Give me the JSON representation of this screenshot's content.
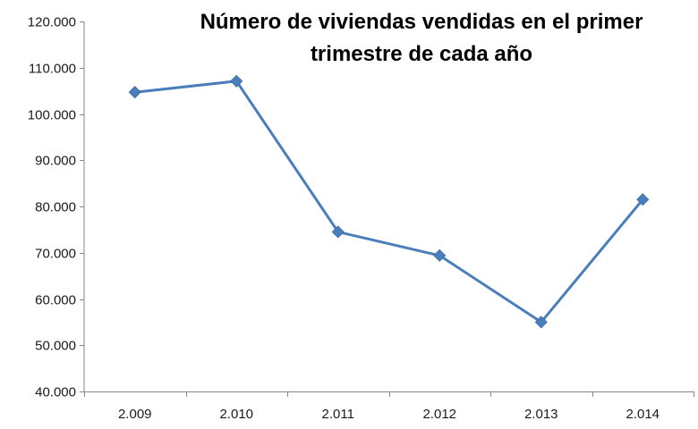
{
  "chart_data": {
    "type": "line",
    "title_lines": [
      "Número de viviendas vendidas en el primer",
      "trimestre de cada año"
    ],
    "categories": [
      "2.009",
      "2.010",
      "2.011",
      "2.012",
      "2.013",
      "2.014"
    ],
    "series": [
      {
        "values": [
          104700,
          107100,
          74500,
          69400,
          55000,
          81500
        ]
      }
    ],
    "ylim": [
      40000,
      120000
    ],
    "yticks": [
      {
        "value": 40000,
        "label": "40.000"
      },
      {
        "value": 50000,
        "label": "50.000"
      },
      {
        "value": 60000,
        "label": "60.000"
      },
      {
        "value": 70000,
        "label": "70.000"
      },
      {
        "value": 80000,
        "label": "80.000"
      },
      {
        "value": 90000,
        "label": "90.000"
      },
      {
        "value": 100000,
        "label": "100.000"
      },
      {
        "value": 110000,
        "label": "110.000"
      },
      {
        "value": 120000,
        "label": "120.000"
      }
    ],
    "grid": false,
    "legend": "none",
    "marker": "diamond",
    "series_color": "#4a7ebb",
    "axis_color": "#868686"
  }
}
